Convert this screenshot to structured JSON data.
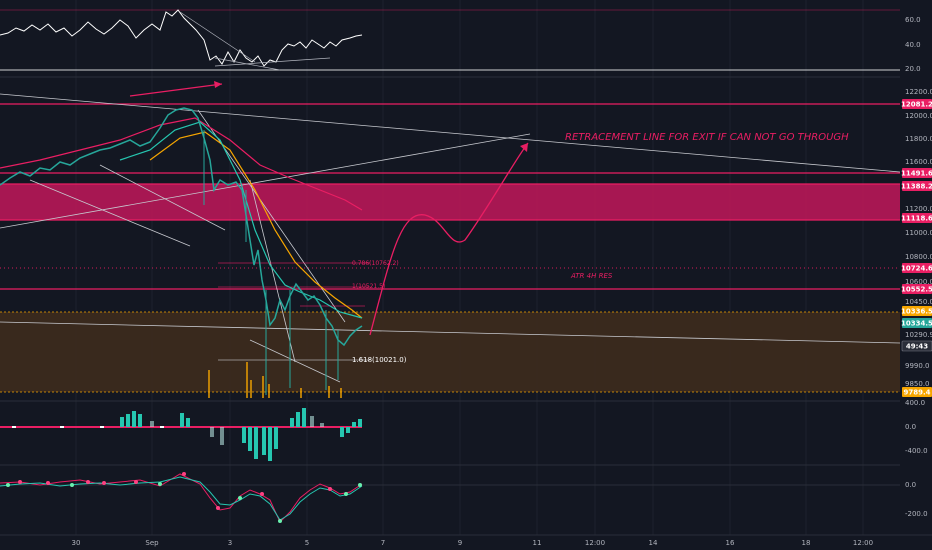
{
  "chart_data": {
    "type": "line",
    "rsi_panel": {
      "ticks": [
        "60.0",
        "40.0",
        "20.0"
      ]
    },
    "price_panel": {
      "ticks": [
        "12200.0",
        "12000.0",
        "11800.0",
        "11600.0",
        "11400.0",
        "11200.0",
        "11000.0",
        "10800.0",
        "10600.0",
        "10450.0",
        "10290.9",
        "9990.0",
        "9850.0"
      ],
      "price_tags": [
        {
          "label": "12081.2",
          "color": "#e91e63"
        },
        {
          "label": "11491.6",
          "color": "#e91e63"
        },
        {
          "label": "11388.2",
          "color": "#e91e63"
        },
        {
          "label": "11118.6",
          "color": "#e91e63"
        },
        {
          "label": "10724.6",
          "color": "#e91e63"
        },
        {
          "label": "10552.5",
          "color": "#e91e63"
        },
        {
          "label": "10336.5",
          "color": "#f7a600"
        },
        {
          "label": "10334.5",
          "color": "#26a69a"
        },
        {
          "label": "49:43",
          "color": "#2a2e39"
        },
        {
          "label": "9789.4",
          "color": "#f7a600"
        }
      ],
      "annotations": {
        "retracement": "RETRACEMENT LINE FOR EXIT IF CAN NOT GO THROUGH",
        "atr": "ATR 4H RES",
        "fib_786": "0.786(10762.2)",
        "fib_1": "1(10521.5)",
        "fib_1618": "1.618(10021.0)"
      }
    },
    "macd_panel": {
      "ticks": [
        "400.0",
        "0.0",
        "-400.0"
      ]
    },
    "osc_panel": {
      "ticks": [
        "0.0",
        "-200.0"
      ]
    },
    "x_labels": [
      "30",
      "Sep",
      "3",
      "5",
      "7",
      "9",
      "11",
      "12:00",
      "14",
      "16",
      "18",
      "12:00"
    ],
    "colors": {
      "zone_pink": "#c2185b",
      "zone_brown": "#3b2a1e",
      "line_pink": "#e91e63",
      "ma_orange": "#f7a600",
      "ma_teal": "#26c6b0"
    }
  }
}
